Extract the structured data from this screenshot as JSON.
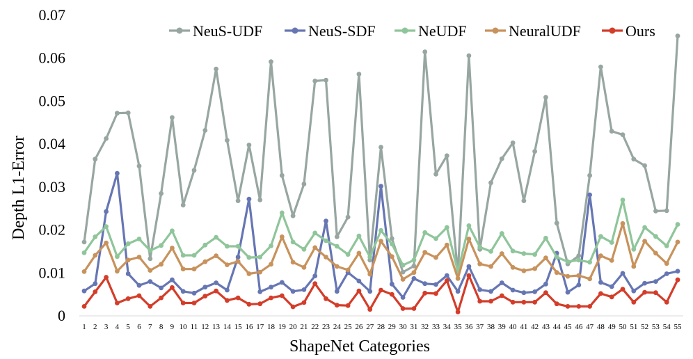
{
  "chart_data": {
    "type": "line",
    "title": "",
    "xlabel": "ShapeNet Categories",
    "ylabel": "Depth L1-Error",
    "ylim": [
      0,
      0.07
    ],
    "yticks": [
      "0",
      "0.01",
      "0.02",
      "0.03",
      "0.04",
      "0.05",
      "0.06",
      "0.07"
    ],
    "grid": false,
    "legend_position": "top-right",
    "categories": [
      "1",
      "2",
      "3",
      "4",
      "5",
      "6",
      "7",
      "8",
      "9",
      "10",
      "11",
      "12",
      "13",
      "14",
      "15",
      "16",
      "17",
      "18",
      "19",
      "20",
      "21",
      "22",
      "23",
      "24",
      "25",
      "26",
      "27",
      "28",
      "29",
      "30",
      "31",
      "32",
      "33",
      "34",
      "35",
      "36",
      "37",
      "38",
      "39",
      "40",
      "41",
      "42",
      "43",
      "44",
      "45",
      "46",
      "47",
      "48",
      "49",
      "50",
      "51",
      "52",
      "53",
      "54",
      "55"
    ],
    "series": [
      {
        "name": "NeuS-UDF",
        "color": "#97a6a0",
        "values": [
          0.0172,
          0.0365,
          0.0413,
          0.0472,
          0.0473,
          0.0349,
          0.0133,
          0.0285,
          0.0462,
          0.0258,
          0.0339,
          0.0432,
          0.0575,
          0.0409,
          0.0268,
          0.0398,
          0.027,
          0.0592,
          0.0327,
          0.0233,
          0.0307,
          0.0547,
          0.0549,
          0.0184,
          0.023,
          0.0563,
          0.013,
          0.0393,
          0.018,
          0.0102,
          0.0116,
          0.0615,
          0.033,
          0.0373,
          0.0098,
          0.0606,
          0.0155,
          0.031,
          0.0366,
          0.0403,
          0.0268,
          0.0383,
          0.0509,
          0.0216,
          0.0121,
          0.014,
          0.0327,
          0.058,
          0.043,
          0.0422,
          0.0365,
          0.035,
          0.0244,
          0.0245,
          0.0652
        ]
      },
      {
        "name": "NeuS-SDF",
        "color": "#6676b3",
        "values": [
          0.0058,
          0.0075,
          0.0243,
          0.0332,
          0.0098,
          0.0071,
          0.008,
          0.0065,
          0.0084,
          0.0057,
          0.0053,
          0.0067,
          0.0077,
          0.006,
          0.0137,
          0.0272,
          0.0056,
          0.0067,
          0.0078,
          0.0057,
          0.0061,
          0.0093,
          0.0221,
          0.0057,
          0.0101,
          0.0081,
          0.0057,
          0.0302,
          0.0074,
          0.0043,
          0.0087,
          0.0075,
          0.0073,
          0.0094,
          0.0057,
          0.0115,
          0.0061,
          0.0057,
          0.0077,
          0.006,
          0.0054,
          0.0056,
          0.0074,
          0.0146,
          0.0055,
          0.0072,
          0.0282,
          0.0078,
          0.0068,
          0.0099,
          0.0058,
          0.0076,
          0.008,
          0.0098,
          0.0104
        ]
      },
      {
        "name": "NeUDF",
        "color": "#8fc59a",
        "values": [
          0.0147,
          0.0184,
          0.0208,
          0.0138,
          0.0168,
          0.0179,
          0.0152,
          0.0164,
          0.0198,
          0.0141,
          0.0141,
          0.0165,
          0.0183,
          0.0162,
          0.0162,
          0.0136,
          0.0137,
          0.0163,
          0.024,
          0.0172,
          0.0155,
          0.0193,
          0.0175,
          0.0162,
          0.0143,
          0.0186,
          0.0137,
          0.0199,
          0.0167,
          0.0118,
          0.013,
          0.0194,
          0.018,
          0.0206,
          0.0103,
          0.021,
          0.016,
          0.015,
          0.0192,
          0.0151,
          0.0145,
          0.0143,
          0.0181,
          0.0137,
          0.0126,
          0.013,
          0.0125,
          0.0185,
          0.0171,
          0.027,
          0.0155,
          0.0206,
          0.0185,
          0.0163,
          0.0213
        ]
      },
      {
        "name": "NeuralUDF",
        "color": "#c8925c",
        "values": [
          0.0103,
          0.0141,
          0.017,
          0.0104,
          0.013,
          0.0137,
          0.0106,
          0.012,
          0.0158,
          0.0109,
          0.0109,
          0.0126,
          0.014,
          0.0119,
          0.0127,
          0.0098,
          0.0102,
          0.012,
          0.0184,
          0.0125,
          0.0113,
          0.0159,
          0.0137,
          0.0115,
          0.0107,
          0.0146,
          0.0097,
          0.0174,
          0.0138,
          0.0085,
          0.0101,
          0.0148,
          0.0136,
          0.0165,
          0.0087,
          0.0179,
          0.0121,
          0.0115,
          0.0145,
          0.0113,
          0.0105,
          0.011,
          0.0135,
          0.0101,
          0.0092,
          0.0094,
          0.0086,
          0.014,
          0.0129,
          0.0215,
          0.0115,
          0.0174,
          0.0146,
          0.0122,
          0.0172
        ]
      },
      {
        "name": "Ours",
        "color": "#d33d2a",
        "values": [
          0.0022,
          0.0056,
          0.009,
          0.003,
          0.004,
          0.0047,
          0.0022,
          0.0042,
          0.0066,
          0.003,
          0.003,
          0.0046,
          0.0058,
          0.0036,
          0.0042,
          0.0027,
          0.0028,
          0.0042,
          0.0047,
          0.0021,
          0.0031,
          0.0075,
          0.004,
          0.0025,
          0.0024,
          0.0058,
          0.0015,
          0.006,
          0.005,
          0.0017,
          0.0017,
          0.0053,
          0.0052,
          0.0082,
          0.0009,
          0.0094,
          0.0034,
          0.0034,
          0.0047,
          0.0032,
          0.0032,
          0.0032,
          0.0054,
          0.0028,
          0.0022,
          0.0022,
          0.0022,
          0.0052,
          0.0044,
          0.0062,
          0.0032,
          0.0055,
          0.0054,
          0.0032,
          0.0084
        ]
      }
    ]
  }
}
